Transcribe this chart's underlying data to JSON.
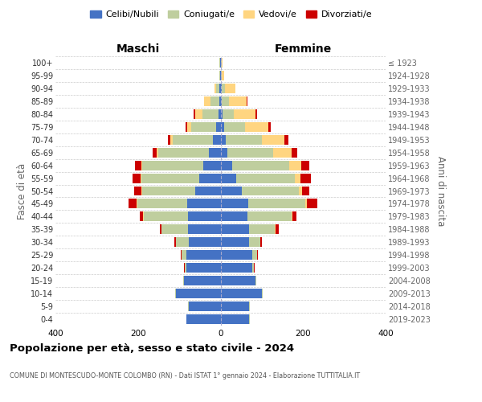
{
  "age_groups": [
    "0-4",
    "5-9",
    "10-14",
    "15-19",
    "20-24",
    "25-29",
    "30-34",
    "35-39",
    "40-44",
    "45-49",
    "50-54",
    "55-59",
    "60-64",
    "65-69",
    "70-74",
    "75-79",
    "80-84",
    "85-89",
    "90-94",
    "95-99",
    "100+"
  ],
  "birth_years": [
    "2019-2023",
    "2014-2018",
    "2009-2013",
    "2004-2008",
    "1999-2003",
    "1994-1998",
    "1989-1993",
    "1984-1988",
    "1979-1983",
    "1974-1978",
    "1969-1973",
    "1964-1968",
    "1959-1963",
    "1954-1958",
    "1949-1953",
    "1944-1948",
    "1939-1943",
    "1934-1938",
    "1929-1933",
    "1924-1928",
    "≤ 1923"
  ],
  "male_celibi": [
    82,
    76,
    108,
    88,
    82,
    82,
    76,
    78,
    78,
    80,
    62,
    52,
    42,
    28,
    18,
    10,
    5,
    3,
    2,
    1,
    1
  ],
  "male_coniugati": [
    1,
    2,
    2,
    2,
    5,
    12,
    32,
    65,
    108,
    122,
    128,
    140,
    148,
    122,
    98,
    62,
    38,
    22,
    8,
    2,
    1
  ],
  "male_vedovi": [
    0,
    0,
    0,
    0,
    0,
    0,
    0,
    0,
    1,
    2,
    2,
    2,
    2,
    4,
    6,
    8,
    18,
    15,
    5,
    0,
    0
  ],
  "male_divorziati": [
    0,
    0,
    0,
    0,
    1,
    2,
    4,
    4,
    8,
    18,
    18,
    20,
    15,
    10,
    5,
    5,
    5,
    0,
    0,
    0,
    0
  ],
  "female_nubili": [
    70,
    70,
    100,
    85,
    76,
    76,
    70,
    70,
    65,
    68,
    52,
    38,
    28,
    16,
    12,
    8,
    4,
    3,
    2,
    1,
    1
  ],
  "female_coniugate": [
    1,
    1,
    2,
    2,
    5,
    12,
    26,
    62,
    108,
    138,
    138,
    142,
    138,
    112,
    88,
    52,
    28,
    18,
    8,
    2,
    1
  ],
  "female_vedove": [
    0,
    0,
    0,
    0,
    0,
    0,
    0,
    1,
    1,
    3,
    8,
    14,
    30,
    45,
    55,
    56,
    52,
    42,
    26,
    5,
    2
  ],
  "female_divorziate": [
    0,
    0,
    0,
    0,
    1,
    2,
    5,
    8,
    10,
    25,
    18,
    25,
    20,
    12,
    10,
    5,
    5,
    2,
    0,
    0,
    0
  ],
  "color_celibi": "#4472C4",
  "color_coniugati": "#BFCE9E",
  "color_vedovi": "#FFD580",
  "color_divorziati": "#CC0000",
  "label_maschi": "Maschi",
  "label_femmine": "Femmine",
  "ylabel_left": "Fasce di età",
  "ylabel_right": "Anni di nascita",
  "title": "Popolazione per età, sesso e stato civile - 2024",
  "subtitle": "COMUNE DI MONTESCUDO-MONTE COLOMBO (RN) - Dati ISTAT 1° gennaio 2024 - Elaborazione TUTTITALIA.IT",
  "xlim": 400,
  "legend_labels": [
    "Celibi/Nubili",
    "Coniugati/e",
    "Vedovi/e",
    "Divorziati/e"
  ]
}
